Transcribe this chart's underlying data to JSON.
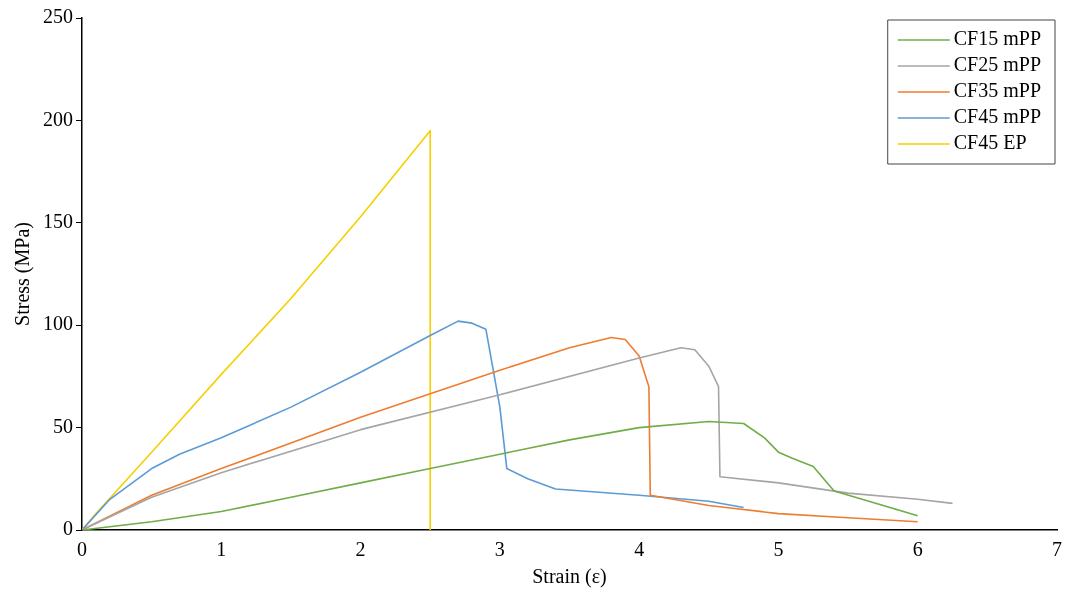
{
  "chart_data": {
    "type": "line",
    "xlabel": "Strain (ε)",
    "ylabel": "Stress (MPa)",
    "xlim": [
      0,
      7
    ],
    "xticks": [
      0,
      1,
      2,
      3,
      4,
      5,
      6,
      7
    ],
    "ylim": [
      0,
      250
    ],
    "yticks": [
      0,
      50,
      100,
      150,
      200,
      250
    ],
    "grid": false,
    "legend": "top right",
    "marker": "none",
    "line_style": "solid",
    "series": [
      {
        "name": "CF15 mPP",
        "color": "#70ad47",
        "x": [
          0,
          0.5,
          1,
          1.5,
          2,
          2.5,
          3,
          3.5,
          4,
          4.5,
          4.75,
          4.9,
          5,
          5.1,
          5.25,
          5.4,
          6
        ],
        "values": [
          0,
          4,
          9,
          16,
          23,
          30,
          37,
          44,
          50,
          53,
          52,
          45,
          38,
          35,
          31,
          19,
          7
        ]
      },
      {
        "name": "CF25 mPP",
        "color": "#a5a5a5",
        "x": [
          0,
          0.5,
          1,
          2,
          3,
          4,
          4.3,
          4.4,
          4.5,
          4.57,
          4.58,
          5,
          5.5,
          6,
          6.25
        ],
        "values": [
          0,
          16,
          28,
          49,
          66,
          84,
          89,
          88,
          80,
          70,
          26,
          23,
          18,
          15,
          13
        ]
      },
      {
        "name": "CF35 mPP",
        "color": "#ed7d31",
        "x": [
          0,
          0.5,
          1,
          2,
          3,
          3.5,
          3.8,
          3.9,
          4,
          4.07,
          4.08,
          4.5,
          5,
          5.5,
          6
        ],
        "values": [
          0,
          17,
          30,
          55,
          78,
          89,
          94,
          93,
          85,
          70,
          17,
          12,
          8,
          6,
          4
        ]
      },
      {
        "name": "CF45 mPP",
        "color": "#5b9bd5",
        "x": [
          0,
          0.2,
          0.5,
          0.7,
          1,
          1.5,
          2,
          2.5,
          2.7,
          2.8,
          2.9,
          3,
          3.05,
          3.2,
          3.4,
          4,
          4.5,
          4.75
        ],
        "values": [
          0,
          15,
          30,
          37,
          45,
          60,
          77,
          95,
          102,
          101,
          98,
          60,
          30,
          25,
          20,
          17,
          14,
          11
        ]
      },
      {
        "name": "CF45 EP",
        "color": "#f5d000",
        "x": [
          0,
          0.1,
          0.5,
          1,
          1.5,
          2,
          2.5,
          2.5
        ],
        "values": [
          0,
          8,
          38,
          76,
          113,
          153,
          195,
          0
        ]
      }
    ]
  }
}
